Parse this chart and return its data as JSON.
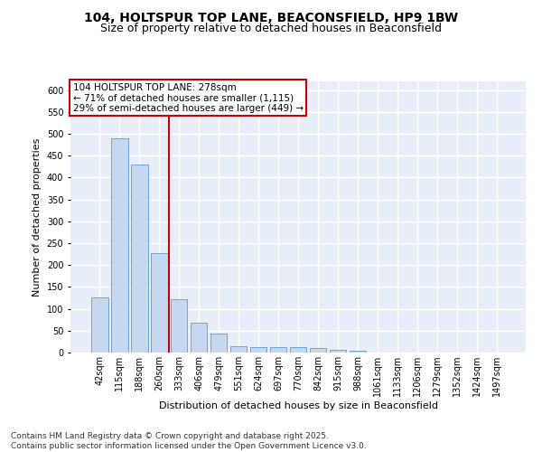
{
  "title1": "104, HOLTSPUR TOP LANE, BEACONSFIELD, HP9 1BW",
  "title2": "Size of property relative to detached houses in Beaconsfield",
  "xlabel": "Distribution of detached houses by size in Beaconsfield",
  "ylabel": "Number of detached properties",
  "categories": [
    "42sqm",
    "115sqm",
    "188sqm",
    "260sqm",
    "333sqm",
    "406sqm",
    "479sqm",
    "551sqm",
    "624sqm",
    "697sqm",
    "770sqm",
    "842sqm",
    "915sqm",
    "988sqm",
    "1061sqm",
    "1133sqm",
    "1206sqm",
    "1279sqm",
    "1352sqm",
    "1424sqm",
    "1497sqm"
  ],
  "values": [
    127,
    490,
    430,
    228,
    122,
    68,
    44,
    14,
    12,
    13,
    12,
    10,
    6,
    4,
    1,
    0,
    0,
    0,
    0,
    0,
    0
  ],
  "bar_color": "#c5d8f0",
  "bar_edge_color": "#5b9bd5",
  "vline_x_index": 3,
  "vline_color": "#cc0000",
  "annotation_text": "104 HOLTSPUR TOP LANE: 278sqm\n← 71% of detached houses are smaller (1,115)\n29% of semi-detached houses are larger (449) →",
  "annotation_box_facecolor": "#ffffff",
  "annotation_box_edgecolor": "#cc0000",
  "footer": "Contains HM Land Registry data © Crown copyright and database right 2025.\nContains public sector information licensed under the Open Government Licence v3.0.",
  "ylim": [
    0,
    620
  ],
  "yticks": [
    0,
    50,
    100,
    150,
    200,
    250,
    300,
    350,
    400,
    450,
    500,
    550,
    600
  ],
  "background_color": "#e8eef8",
  "grid_color": "#ffffff",
  "title_fontsize": 10,
  "subtitle_fontsize": 9,
  "axis_label_fontsize": 8,
  "tick_fontsize": 7,
  "footer_fontsize": 6.5,
  "annotation_fontsize": 7.5
}
